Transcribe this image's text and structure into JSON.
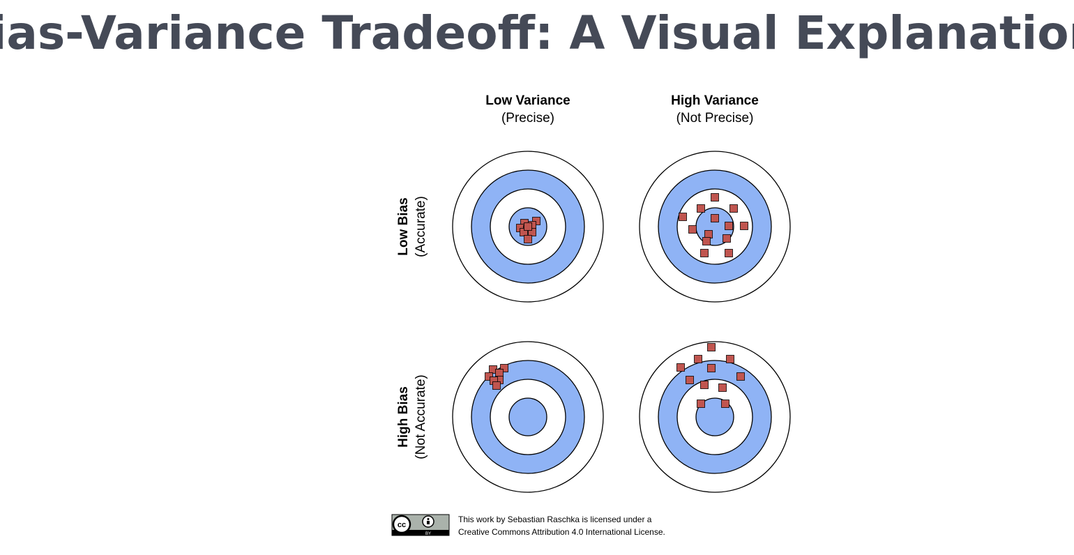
{
  "header": {
    "title": "Bias-Variance Tradeoff: A Visual Explanation"
  },
  "columns": [
    {
      "label": "Low Variance",
      "sublabel": "(Precise)"
    },
    {
      "label": "High Variance",
      "sublabel": "(Not Precise)"
    }
  ],
  "rows": [
    {
      "label": "Low Bias",
      "sublabel": "(Accurate)"
    },
    {
      "label": "High Bias",
      "sublabel": "(Not Accurate)"
    }
  ],
  "license": {
    "badge": [
      "cc",
      "BY"
    ],
    "lines": [
      "This work by Sebastian Raschka is licensed under a",
      "Creative Commons Attribution 4.0 International License."
    ]
  }
}
